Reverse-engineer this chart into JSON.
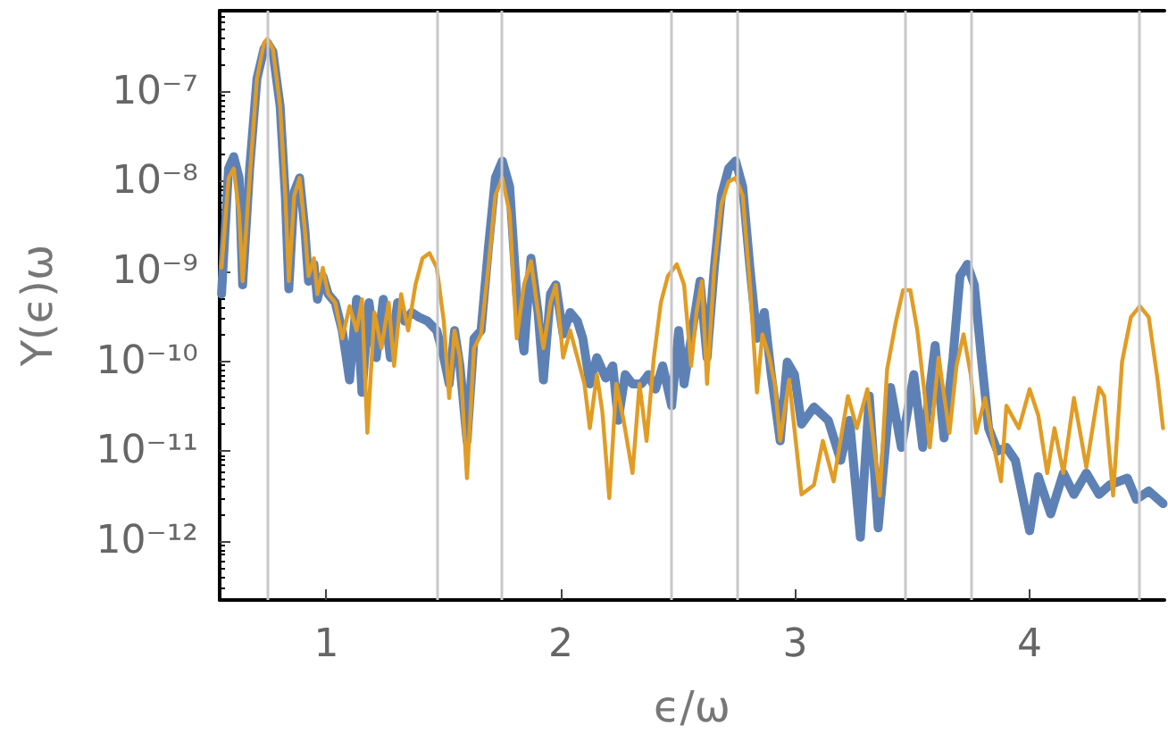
{
  "chart_data": {
    "type": "line",
    "xlabel": "ϵ/ω",
    "ylabel": "Y(ϵ)ω",
    "log": "y",
    "grid": false,
    "marker": "none",
    "line_style": "solid",
    "xlim": [
      0.545,
      4.575
    ],
    "xticks": [
      1,
      2,
      3,
      4
    ],
    "ylim": [
      2.2e-13,
      8e-07
    ],
    "yticks": [
      {
        "value": 1e-12,
        "label": "10⁻¹²"
      },
      {
        "value": 1e-11,
        "label": "10⁻¹¹"
      },
      {
        "value": 1e-10,
        "label": "10⁻¹⁰"
      },
      {
        "value": 1e-09,
        "label": "10⁻⁹"
      },
      {
        "value": 1e-08,
        "label": "10⁻⁸"
      },
      {
        "value": 1e-07,
        "label": "10⁻⁷"
      }
    ],
    "ref_lines": [
      {
        "axis": "x",
        "value": 0.75,
        "color": "#c8c8c8"
      },
      {
        "axis": "x",
        "value": 1.47,
        "color": "#c8c8c8"
      },
      {
        "axis": "x",
        "value": 1.75,
        "color": "#c8c8c8"
      },
      {
        "axis": "x",
        "value": 2.47,
        "color": "#c8c8c8"
      },
      {
        "axis": "x",
        "value": 2.75,
        "color": "#c8c8c8"
      },
      {
        "axis": "x",
        "value": 3.47,
        "color": "#c8c8c8"
      },
      {
        "axis": "x",
        "value": 3.75,
        "color": "#c8c8c8"
      },
      {
        "axis": "x",
        "value": 4.47,
        "color": "#c8c8c8"
      }
    ],
    "series": [
      {
        "color": "#5e81b5",
        "x": [
          0.553,
          0.583,
          0.605,
          0.628,
          0.643,
          0.673,
          0.704,
          0.734,
          0.749,
          0.772,
          0.803,
          0.825,
          0.84,
          0.863,
          0.886,
          0.909,
          0.924,
          0.947,
          0.962,
          0.985,
          1.008,
          1.038,
          1.068,
          1.099,
          1.129,
          1.152,
          1.182,
          1.213,
          1.243,
          1.273,
          1.304,
          1.334,
          1.364,
          1.395,
          1.432,
          1.471,
          1.501,
          1.524,
          1.547,
          1.57,
          1.6,
          1.63,
          1.66,
          1.691,
          1.721,
          1.751,
          1.782,
          1.812,
          1.843,
          1.873,
          1.903,
          1.926,
          1.956,
          1.979,
          2.01,
          2.04,
          2.071,
          2.094,
          2.124,
          2.154,
          2.192,
          2.222,
          2.245,
          2.275,
          2.306,
          2.344,
          2.374,
          2.404,
          2.435,
          2.473,
          2.503,
          2.526,
          2.556,
          2.594,
          2.624,
          2.655,
          2.685,
          2.716,
          2.746,
          2.776,
          2.807,
          2.837,
          2.868,
          2.898,
          2.936,
          2.966,
          2.997,
          3.027,
          3.08,
          3.141,
          3.194,
          3.232,
          3.278,
          3.316,
          3.354,
          3.407,
          3.453,
          3.506,
          3.544,
          3.597,
          3.635,
          3.673,
          3.703,
          3.734,
          3.764,
          3.794,
          3.825,
          3.863,
          3.901,
          3.939,
          4.0,
          4.037,
          4.09,
          4.144,
          4.189,
          4.242,
          4.296,
          4.341,
          4.417,
          4.455,
          4.508,
          4.569
        ],
        "values": [
          5.6e-10,
          1.4e-08,
          1.9e-08,
          1.1e-08,
          7.1e-10,
          1.4e-08,
          1.4e-07,
          3e-07,
          3.5e-07,
          2.8e-07,
          6.9e-08,
          7e-09,
          6.4e-10,
          7.7e-09,
          1.1e-08,
          2.8e-09,
          7.8e-10,
          1.2e-09,
          4.9e-10,
          8.9e-10,
          5.6e-10,
          4.5e-10,
          2.2e-10,
          6.2e-11,
          4.9e-10,
          4.5e-11,
          4.5e-10,
          1.1e-10,
          4.9e-10,
          1.1e-10,
          4.5e-10,
          2.8e-10,
          3.5e-10,
          3.1e-10,
          2.8e-10,
          2.2e-10,
          1.1e-10,
          5.6e-11,
          2.2e-10,
          8.9e-11,
          1.3e-11,
          1.8e-10,
          2.2e-10,
          1.8e-09,
          1.1e-08,
          1.7e-08,
          8.8e-09,
          5.6e-10,
          1.3e-10,
          1.4e-09,
          3.5e-10,
          6.2e-11,
          5.6e-10,
          7.1e-10,
          2e-10,
          3.5e-10,
          2.8e-10,
          1.8e-10,
          5.6e-11,
          1.1e-10,
          6.5e-11,
          8.9e-11,
          2.2e-11,
          7.1e-11,
          5.6e-11,
          5.6e-11,
          7.1e-11,
          4.9e-11,
          8.9e-11,
          3.2e-11,
          2.2e-10,
          5.6e-11,
          1.8e-10,
          7.8e-10,
          1.1e-10,
          1.1e-09,
          7e-09,
          1.4e-08,
          1.7e-08,
          8.8e-09,
          1.1e-09,
          1.8e-10,
          3.5e-10,
          7.1e-11,
          1.3e-11,
          9.8e-11,
          7.1e-11,
          2e-11,
          3.1e-11,
          2.2e-11,
          7.9e-12,
          2.2e-11,
          1.1e-12,
          4.1e-11,
          1.4e-12,
          5.1e-11,
          1.1e-11,
          7.1e-11,
          1.1e-11,
          1.5e-10,
          1.4e-11,
          1.1e-10,
          8.9e-10,
          1.2e-09,
          7.1e-10,
          1.1e-10,
          1.8e-11,
          1e-11,
          1.1e-11,
          7.9e-12,
          1.3e-12,
          5.2e-12,
          2e-12,
          5.7e-12,
          3.3e-12,
          5.7e-12,
          3.3e-12,
          4.2e-12,
          5e-12,
          2.9e-12,
          3.6e-12,
          2.6e-12
        ]
      },
      {
        "color": "#e19c24",
        "x": [
          0.553,
          0.583,
          0.605,
          0.628,
          0.643,
          0.673,
          0.704,
          0.734,
          0.749,
          0.772,
          0.803,
          0.825,
          0.84,
          0.863,
          0.886,
          0.909,
          0.924,
          0.947,
          0.962,
          0.985,
          1.008,
          1.038,
          1.068,
          1.099,
          1.129,
          1.152,
          1.175,
          1.205,
          1.235,
          1.266,
          1.289,
          1.319,
          1.349,
          1.38,
          1.41,
          1.44,
          1.471,
          1.501,
          1.524,
          1.547,
          1.57,
          1.6,
          1.63,
          1.66,
          1.691,
          1.721,
          1.751,
          1.782,
          1.812,
          1.843,
          1.873,
          1.903,
          1.926,
          1.956,
          1.979,
          2.01,
          2.04,
          2.071,
          2.101,
          2.124,
          2.154,
          2.177,
          2.207,
          2.237,
          2.268,
          2.306,
          2.336,
          2.366,
          2.397,
          2.427,
          2.457,
          2.495,
          2.526,
          2.556,
          2.579,
          2.602,
          2.624,
          2.655,
          2.685,
          2.716,
          2.746,
          2.776,
          2.807,
          2.837,
          2.86,
          2.89,
          2.913,
          2.936,
          2.974,
          3.027,
          3.08,
          3.118,
          3.164,
          3.225,
          3.263,
          3.308,
          3.361,
          3.392,
          3.43,
          3.46,
          3.491,
          3.521,
          3.551,
          3.574,
          3.612,
          3.658,
          3.688,
          3.718,
          3.749,
          3.772,
          3.81,
          3.848,
          3.878,
          3.901,
          3.954,
          4.0,
          4.037,
          4.075,
          4.106,
          4.144,
          4.189,
          4.242,
          4.296,
          4.318,
          4.356,
          4.394,
          4.432,
          4.47,
          4.508,
          4.546,
          4.569
        ],
        "values": [
          1.1e-09,
          1.1e-08,
          1.4e-08,
          4.4e-09,
          7.8e-10,
          1.1e-08,
          1.4e-07,
          3.5e-07,
          3.9e-07,
          3e-07,
          6.9e-08,
          7e-09,
          7.8e-10,
          7e-09,
          1.1e-08,
          2.8e-09,
          8.9e-10,
          1.4e-09,
          5.6e-10,
          1.1e-09,
          5.6e-10,
          4.5e-10,
          1.8e-10,
          4.1e-10,
          2.2e-10,
          4.9e-10,
          1.6e-11,
          3.5e-10,
          1.4e-10,
          4.5e-10,
          8.9e-11,
          5.6e-10,
          2.2e-10,
          7.1e-10,
          1.4e-09,
          1.6e-09,
          1.1e-09,
          2.8e-10,
          3.9e-11,
          2.2e-10,
          1.1e-10,
          5e-12,
          1.4e-10,
          2e-10,
          1.1e-09,
          7e-09,
          1.1e-08,
          4.4e-09,
          1.8e-10,
          7.1e-10,
          1.3e-09,
          3.5e-10,
          1.4e-10,
          4.5e-10,
          7.1e-10,
          1.1e-10,
          2.2e-10,
          1.1e-10,
          5.6e-11,
          1.8e-11,
          7.1e-11,
          2.8e-11,
          3e-12,
          5.6e-11,
          2.2e-11,
          5.7e-12,
          5.6e-11,
          1.3e-11,
          1.1e-10,
          4.5e-10,
          8.9e-10,
          1.2e-09,
          7.1e-10,
          8.9e-11,
          3.5e-10,
          7.8e-10,
          5.6e-11,
          1.1e-09,
          5.6e-09,
          1e-08,
          1.1e-08,
          7e-09,
          7.1e-10,
          4.5e-11,
          2e-10,
          1.1e-10,
          5.6e-11,
          1.3e-11,
          6.2e-11,
          3.3e-12,
          4.2e-12,
          1.3e-11,
          4.6e-12,
          4.1e-11,
          1.8e-11,
          4.9e-11,
          3.2e-12,
          8.1e-11,
          2.8e-10,
          6.2e-10,
          6.2e-10,
          2.2e-10,
          4.5e-11,
          1.1e-11,
          1.1e-10,
          1.6e-11,
          8.9e-11,
          2e-10,
          7.1e-11,
          1.6e-11,
          3.9e-11,
          1.1e-11,
          4.6e-12,
          3.2e-11,
          1.8e-11,
          4.9e-11,
          2.5e-11,
          5.7e-12,
          1.8e-11,
          5.7e-12,
          3.9e-11,
          6.6e-12,
          5.1e-11,
          4.1e-11,
          3.2e-12,
          9.8e-11,
          3.1e-10,
          4.1e-10,
          3.1e-10,
          6.2e-11,
          1.8e-11
        ]
      }
    ]
  }
}
